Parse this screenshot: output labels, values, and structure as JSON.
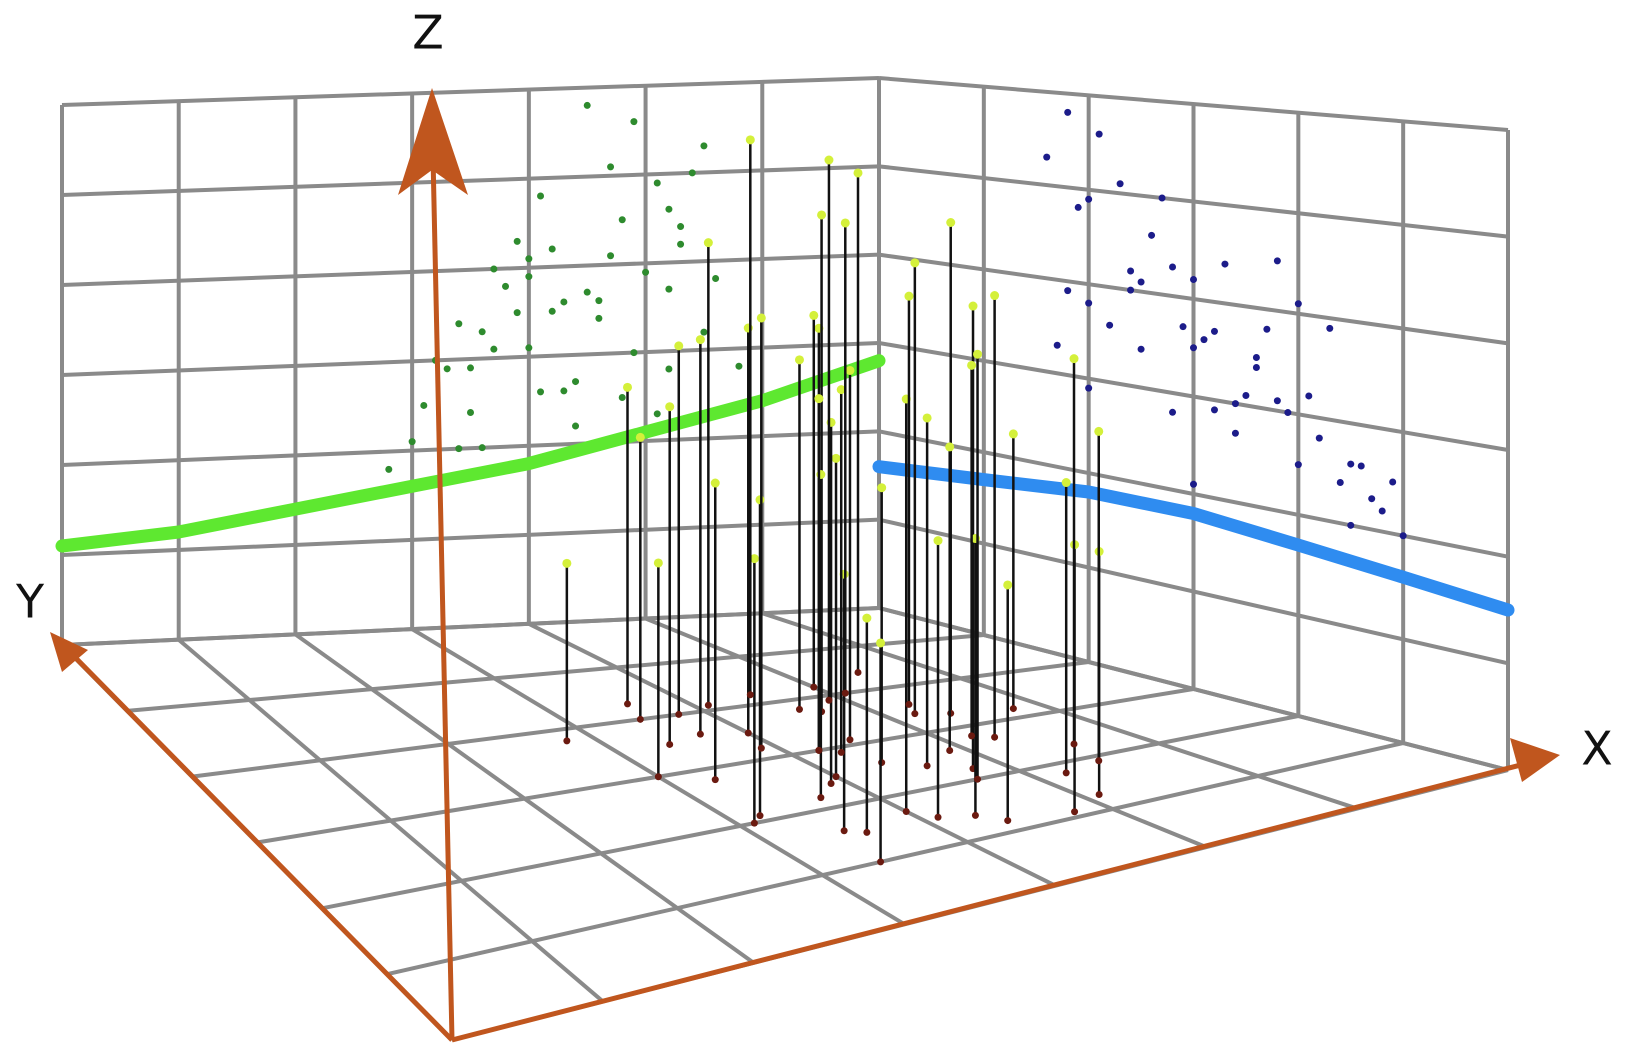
{
  "chart_data": {
    "type": "scatter3d",
    "x_label": "X",
    "y_label": "Y",
    "z_label": "Z",
    "xlim": [
      0,
      7
    ],
    "ylim": [
      0,
      6
    ],
    "zlim": [
      0,
      6
    ],
    "xticks": [
      0,
      1,
      2,
      3,
      4,
      5,
      6,
      7
    ],
    "yticks": [
      0,
      1,
      2,
      3,
      4,
      5,
      6
    ],
    "zticks": [
      0,
      1,
      2,
      3,
      4,
      5,
      6
    ],
    "grid": true,
    "points": {
      "stem_color": "#111111",
      "top_color": "#d4f03a",
      "base_color": "#6b1a10",
      "xz_color": "#2e8b2e",
      "yz_color": "#1c1c8a",
      "x": [
        3.1,
        3.4,
        3.6,
        3.8,
        4.0,
        4.2,
        4.4,
        4.6,
        4.8,
        5.0,
        5.2,
        5.4,
        3.3,
        3.5,
        3.7,
        3.9,
        4.1,
        4.3,
        4.5,
        4.7,
        4.9,
        5.1,
        5.3,
        5.5,
        3.0,
        3.2,
        3.6,
        4.0,
        4.4,
        4.8,
        5.2,
        5.6,
        3.5,
        3.9,
        4.3,
        4.7,
        5.1,
        5.5,
        2.8,
        3.4,
        4.0,
        4.6,
        5.2,
        5.8,
        3.7,
        4.1,
        4.5,
        4.9,
        5.3,
        4.2
      ],
      "y": [
        2.0,
        3.5,
        1.5,
        4.0,
        2.5,
        3.0,
        1.2,
        3.8,
        2.2,
        4.2,
        1.8,
        3.3,
        2.8,
        1.6,
        3.6,
        2.4,
        4.1,
        1.4,
        3.1,
        2.0,
        3.9,
        1.3,
        2.7,
        4.4,
        3.0,
        2.1,
        4.3,
        1.7,
        2.6,
        1.1,
        3.4,
        2.3,
        4.0,
        3.2,
        2.9,
        3.7,
        4.0,
        1.9,
        3.8,
        1.0,
        3.5,
        2.4,
        2.8,
        3.2,
        2.2,
        1.5,
        4.2,
        2.6,
        3.6,
        3.0
      ],
      "z": [
        2.5,
        3.4,
        2.0,
        3.8,
        3.1,
        4.2,
        2.2,
        3.6,
        4.5,
        3.9,
        2.8,
        5.0,
        2.9,
        2.4,
        4.0,
        3.5,
        4.8,
        2.6,
        3.7,
        4.1,
        5.6,
        2.3,
        4.4,
        5.3,
        2.1,
        3.0,
        3.3,
        3.9,
        2.7,
        2.5,
        4.6,
        3.8,
        2.9,
        4.3,
        3.6,
        5.1,
        4.9,
        3.2,
        1.8,
        2.0,
        4.1,
        3.4,
        3.7,
        2.8,
        3.1,
        2.6,
        5.8,
        3.0,
        4.2,
        3.5
      ]
    },
    "fit_xz": {
      "color": "#5ee830",
      "x": [
        0,
        1,
        2,
        3,
        4,
        5,
        6,
        7
      ],
      "z": [
        1.1,
        1.2,
        1.4,
        1.6,
        1.8,
        2.1,
        2.4,
        2.8
      ]
    },
    "fit_yz": {
      "color": "#2f8cf0",
      "y": [
        0,
        1,
        2,
        3,
        4,
        5,
        6
      ],
      "z": [
        1.5,
        1.6,
        1.7,
        1.8,
        1.8,
        1.7,
        1.6
      ]
    }
  }
}
